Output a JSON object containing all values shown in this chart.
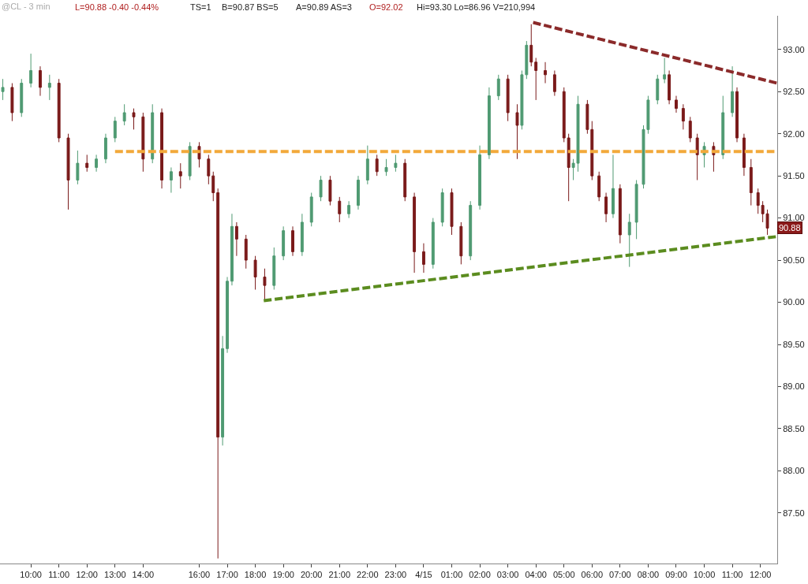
{
  "chart_data": {
    "type": "candlestick",
    "title": "@CL - 3 min",
    "annotations": [
      "L=90.88 -0.40 -0.44%",
      "TS=1",
      "B=90.87 BS=5",
      "A=90.89 AS=3",
      "O=92.02",
      "Hi=93.30 Lo=86.96 V=210,994",
      {
        "text": "90.88",
        "y": 90.88
      }
    ],
    "series": [
      {
        "color": "#4f9a72",
        "x": [
          "--04-14T09:00",
          "--04-14T09:40",
          "--04-14T10:00",
          "--04-14T10:40",
          "--04-14T11:40",
          "--04-14T12:20",
          "--04-14T12:40",
          "--04-14T13:00",
          "--04-14T13:20",
          "--04-14T14:20",
          "--04-14T15:00",
          "--04-14T15:40",
          "--04-14T16:50",
          "--04-14T17:00",
          "--04-14T17:10",
          "--04-14T18:40",
          "--04-14T19:00",
          "--04-14T19:40",
          "--04-14T20:00",
          "--04-14T20:20",
          "--04-14T21:20",
          "--04-14T21:40",
          "--04-14T22:00",
          "--04-14T22:40",
          "--04-14T23:00",
          "--04-15T00:20",
          "--04-15T00:40",
          "--04-15T01:40",
          "--04-15T02:00",
          "--04-15T02:20",
          "--04-15T02:40",
          "--04-15T03:30",
          "--04-15T03:40",
          "--04-15T05:20",
          "--04-15T05:30",
          "--04-15T06:45",
          "--04-15T07:20",
          "--04-15T07:35",
          "--04-15T07:50",
          "--04-15T08:00",
          "--04-15T08:20",
          "--04-15T08:35",
          "--04-15T10:00",
          "--04-15T10:40",
          "--04-15T11:00"
        ],
        "ohlc": [
          [
            92.5,
            92.65,
            92.4,
            92.55
          ],
          [
            92.25,
            92.65,
            92.2,
            92.6
          ],
          [
            92.6,
            92.95,
            92.55,
            92.75
          ],
          [
            92.55,
            92.7,
            92.4,
            92.6
          ],
          [
            91.45,
            91.8,
            91.4,
            91.65
          ],
          [
            91.6,
            91.75,
            91.55,
            91.7
          ],
          [
            91.7,
            92.0,
            91.65,
            91.95
          ],
          [
            91.95,
            92.2,
            91.9,
            92.15
          ],
          [
            92.15,
            92.35,
            92.1,
            92.25
          ],
          [
            91.7,
            92.35,
            91.65,
            92.25
          ],
          [
            91.45,
            91.6,
            91.3,
            91.55
          ],
          [
            91.5,
            91.9,
            91.45,
            91.85
          ],
          [
            88.4,
            89.6,
            88.3,
            89.45
          ],
          [
            89.45,
            90.3,
            89.4,
            90.25
          ],
          [
            90.25,
            91.05,
            90.2,
            90.9
          ],
          [
            90.2,
            90.65,
            90.15,
            90.55
          ],
          [
            90.55,
            90.9,
            90.5,
            90.85
          ],
          [
            90.6,
            91.05,
            90.55,
            90.95
          ],
          [
            90.95,
            91.3,
            90.9,
            91.25
          ],
          [
            91.25,
            91.5,
            91.2,
            91.45
          ],
          [
            91.05,
            91.2,
            91.0,
            91.15
          ],
          [
            91.15,
            91.5,
            91.1,
            91.45
          ],
          [
            91.45,
            91.86,
            91.4,
            91.7
          ],
          [
            91.55,
            91.7,
            91.5,
            91.6
          ],
          [
            91.6,
            91.75,
            91.55,
            91.65
          ],
          [
            90.45,
            91.0,
            90.4,
            90.95
          ],
          [
            90.95,
            91.35,
            90.9,
            91.3
          ],
          [
            90.55,
            91.2,
            90.5,
            91.15
          ],
          [
            91.15,
            91.86,
            91.1,
            91.75
          ],
          [
            91.75,
            92.55,
            91.7,
            92.45
          ],
          [
            92.45,
            92.7,
            92.4,
            92.65
          ],
          [
            92.1,
            92.75,
            92.05,
            92.7
          ],
          [
            92.7,
            93.1,
            92.65,
            93.05
          ],
          [
            91.6,
            91.7,
            91.45,
            91.65
          ],
          [
            91.65,
            92.45,
            91.55,
            92.35
          ],
          [
            91.05,
            91.75,
            91.0,
            91.35
          ],
          [
            90.8,
            91.05,
            90.42,
            90.95
          ],
          [
            90.95,
            91.45,
            90.75,
            91.4
          ],
          [
            91.4,
            92.1,
            91.35,
            92.05
          ],
          [
            92.05,
            92.45,
            92.0,
            92.4
          ],
          [
            92.4,
            92.7,
            92.35,
            92.65
          ],
          [
            92.65,
            92.9,
            92.6,
            92.7
          ],
          [
            91.75,
            91.9,
            91.6,
            91.85
          ],
          [
            91.75,
            92.45,
            91.7,
            92.25
          ],
          [
            92.25,
            92.8,
            92.2,
            92.5
          ]
        ]
      },
      {
        "color": "#7a1a1a",
        "x": [
          "--04-14T09:20",
          "--04-14T10:20",
          "--04-14T11:00",
          "--04-14T11:20",
          "--04-14T12:00",
          "--04-14T13:40",
          "--04-14T14:00",
          "--04-14T14:40",
          "--04-14T15:20",
          "--04-14T16:00",
          "--04-14T16:20",
          "--04-14T16:30",
          "--04-14T16:40",
          "--04-14T17:20",
          "--04-14T17:40",
          "--04-14T18:00",
          "--04-14T18:20",
          "--04-14T19:20",
          "--04-14T20:40",
          "--04-14T21:00",
          "--04-14T22:20",
          "--04-14T23:20",
          "--04-14T23:40",
          "--04-15T00:00",
          "--04-15T01:00",
          "--04-15T01:20",
          "--04-15T03:00",
          "--04-15T03:20",
          "--04-15T03:50",
          "--04-15T04:00",
          "--04-15T04:20",
          "--04-15T04:40",
          "--04-15T05:00",
          "--04-15T05:10",
          "--04-15T05:50",
          "--04-15T06:00",
          "--04-15T06:15",
          "--04-15T06:30",
          "--04-15T07:00",
          "--04-15T08:45",
          "--04-15T09:00",
          "--04-15T09:15",
          "--04-15T09:30",
          "--04-15T09:45",
          "--04-15T10:20",
          "--04-15T11:10",
          "--04-15T11:25",
          "--04-15T11:40",
          "--04-15T11:55",
          "--04-15T12:05",
          "--04-15T12:15"
        ],
        "ohlc": [
          [
            92.55,
            92.6,
            92.15,
            92.25
          ],
          [
            92.75,
            92.8,
            92.45,
            92.55
          ],
          [
            92.6,
            92.65,
            91.9,
            91.95
          ],
          [
            91.95,
            92.0,
            91.1,
            91.45
          ],
          [
            91.65,
            91.75,
            91.55,
            91.6
          ],
          [
            92.25,
            92.3,
            92.05,
            92.2
          ],
          [
            92.2,
            92.25,
            91.55,
            91.7
          ],
          [
            92.25,
            92.3,
            91.35,
            91.45
          ],
          [
            91.55,
            91.65,
            91.35,
            91.5
          ],
          [
            91.85,
            91.9,
            91.6,
            91.7
          ],
          [
            91.7,
            91.75,
            91.4,
            91.5
          ],
          [
            91.5,
            91.55,
            91.2,
            91.3
          ],
          [
            91.3,
            91.35,
            86.96,
            88.4
          ],
          [
            90.9,
            90.95,
            90.55,
            90.75
          ],
          [
            90.75,
            90.8,
            90.4,
            90.5
          ],
          [
            90.5,
            90.55,
            90.15,
            90.3
          ],
          [
            90.3,
            90.4,
            90.02,
            90.2
          ],
          [
            90.85,
            90.9,
            90.55,
            90.6
          ],
          [
            91.45,
            91.5,
            91.15,
            91.2
          ],
          [
            91.2,
            91.25,
            90.95,
            91.05
          ],
          [
            91.7,
            91.75,
            91.5,
            91.55
          ],
          [
            91.65,
            91.7,
            91.2,
            91.25
          ],
          [
            91.25,
            91.3,
            90.35,
            90.6
          ],
          [
            90.6,
            90.7,
            90.35,
            90.45
          ],
          [
            91.3,
            91.35,
            90.8,
            90.9
          ],
          [
            90.9,
            90.95,
            90.45,
            90.55
          ],
          [
            92.65,
            92.7,
            92.15,
            92.25
          ],
          [
            92.25,
            92.35,
            91.7,
            92.1
          ],
          [
            93.05,
            93.3,
            92.8,
            92.85
          ],
          [
            92.85,
            92.9,
            92.4,
            92.75
          ],
          [
            92.75,
            92.85,
            92.6,
            92.7
          ],
          [
            92.7,
            92.75,
            92.45,
            92.5
          ],
          [
            92.5,
            92.55,
            91.9,
            91.95
          ],
          [
            91.95,
            92.0,
            91.2,
            91.6
          ],
          [
            92.35,
            92.4,
            92.0,
            92.05
          ],
          [
            92.05,
            92.15,
            91.45,
            91.5
          ],
          [
            91.5,
            91.55,
            91.2,
            91.25
          ],
          [
            91.25,
            91.3,
            90.95,
            91.05
          ],
          [
            91.35,
            91.4,
            90.7,
            90.8
          ],
          [
            92.7,
            92.75,
            92.35,
            92.4
          ],
          [
            92.4,
            92.45,
            92.25,
            92.3
          ],
          [
            92.3,
            92.35,
            92.05,
            92.15
          ],
          [
            92.15,
            92.2,
            91.9,
            91.95
          ],
          [
            91.95,
            92.0,
            91.45,
            91.75
          ],
          [
            91.85,
            91.9,
            91.55,
            91.75
          ],
          [
            92.5,
            92.55,
            91.9,
            91.95
          ],
          [
            91.95,
            92.0,
            91.5,
            91.6
          ],
          [
            91.6,
            91.7,
            91.15,
            91.3
          ],
          [
            91.3,
            91.35,
            91.05,
            91.15
          ],
          [
            91.15,
            91.2,
            90.95,
            91.05
          ],
          [
            91.05,
            91.1,
            90.8,
            90.88
          ]
        ]
      },
      {
        "type": "line",
        "color": "#f2a93b",
        "line_style": "dashed",
        "marker": "none",
        "x": [
          "--04-14T13:00",
          "--04-15T12:30"
        ],
        "values": [
          91.79,
          91.79
        ]
      },
      {
        "type": "line",
        "color": "#8b2a2a",
        "line_style": "dashed",
        "marker": "none",
        "x": [
          "--04-15T03:54",
          "--04-15T12:36"
        ],
        "values": [
          93.32,
          92.6
        ]
      },
      {
        "type": "line",
        "color": "#5b8c1f",
        "line_style": "dashed",
        "marker": "none",
        "x": [
          "--04-14T18:18",
          "--04-15T12:36"
        ],
        "values": [
          90.02,
          90.78
        ]
      }
    ],
    "xlim": [
      "--04-14T08:54",
      "--04-15T12:36"
    ],
    "xticks": [
      {
        "value": "--04-14T10:00",
        "label": "10:00"
      },
      {
        "value": "--04-14T11:00",
        "label": "11:00"
      },
      {
        "value": "--04-14T12:00",
        "label": "12:00"
      },
      {
        "value": "--04-14T13:00",
        "label": "13:00"
      },
      {
        "value": "--04-14T14:00",
        "label": "14:00"
      },
      {
        "value": "--04-14T16:00",
        "label": "16:00"
      },
      {
        "value": "--04-14T17:00",
        "label": "17:00"
      },
      {
        "value": "--04-14T18:00",
        "label": "18:00"
      },
      {
        "value": "--04-14T19:00",
        "label": "19:00"
      },
      {
        "value": "--04-14T20:00",
        "label": "20:00"
      },
      {
        "value": "--04-14T21:00",
        "label": "21:00"
      },
      {
        "value": "--04-14T22:00",
        "label": "22:00"
      },
      {
        "value": "--04-14T23:00",
        "label": "23:00"
      },
      {
        "value": "--04-15T00:00",
        "label": "4/15"
      },
      {
        "value": "--04-15T01:00",
        "label": "01:00"
      },
      {
        "value": "--04-15T02:00",
        "label": "02:00"
      },
      {
        "value": "--04-15T03:00",
        "label": "03:00"
      },
      {
        "value": "--04-15T04:00",
        "label": "04:00"
      },
      {
        "value": "--04-15T05:00",
        "label": "05:00"
      },
      {
        "value": "--04-15T06:00",
        "label": "06:00"
      },
      {
        "value": "--04-15T07:00",
        "label": "07:00"
      },
      {
        "value": "--04-15T08:00",
        "label": "08:00"
      },
      {
        "value": "--04-15T09:00",
        "label": "09:00"
      },
      {
        "value": "--04-15T10:00",
        "label": "10:00"
      },
      {
        "value": "--04-15T11:00",
        "label": "11:00"
      },
      {
        "value": "--04-15T12:00",
        "label": "12:00"
      }
    ],
    "ylim": [
      86.9,
      93.4
    ],
    "yticks": [
      {
        "value": 87.5,
        "label": "87.50"
      },
      {
        "value": 88,
        "label": "88.00"
      },
      {
        "value": 88.5,
        "label": "88.50"
      },
      {
        "value": 89,
        "label": "89.00"
      },
      {
        "value": 89.5,
        "label": "89.50"
      },
      {
        "value": 90,
        "label": "90.00"
      },
      {
        "value": 90.5,
        "label": "90.50"
      },
      {
        "value": 91,
        "label": "91.00"
      },
      {
        "value": 91.5,
        "label": "91.50"
      },
      {
        "value": 92,
        "label": "92.00"
      },
      {
        "value": 92.5,
        "label": "92.50"
      },
      {
        "value": 93,
        "label": "93.00"
      }
    ]
  }
}
